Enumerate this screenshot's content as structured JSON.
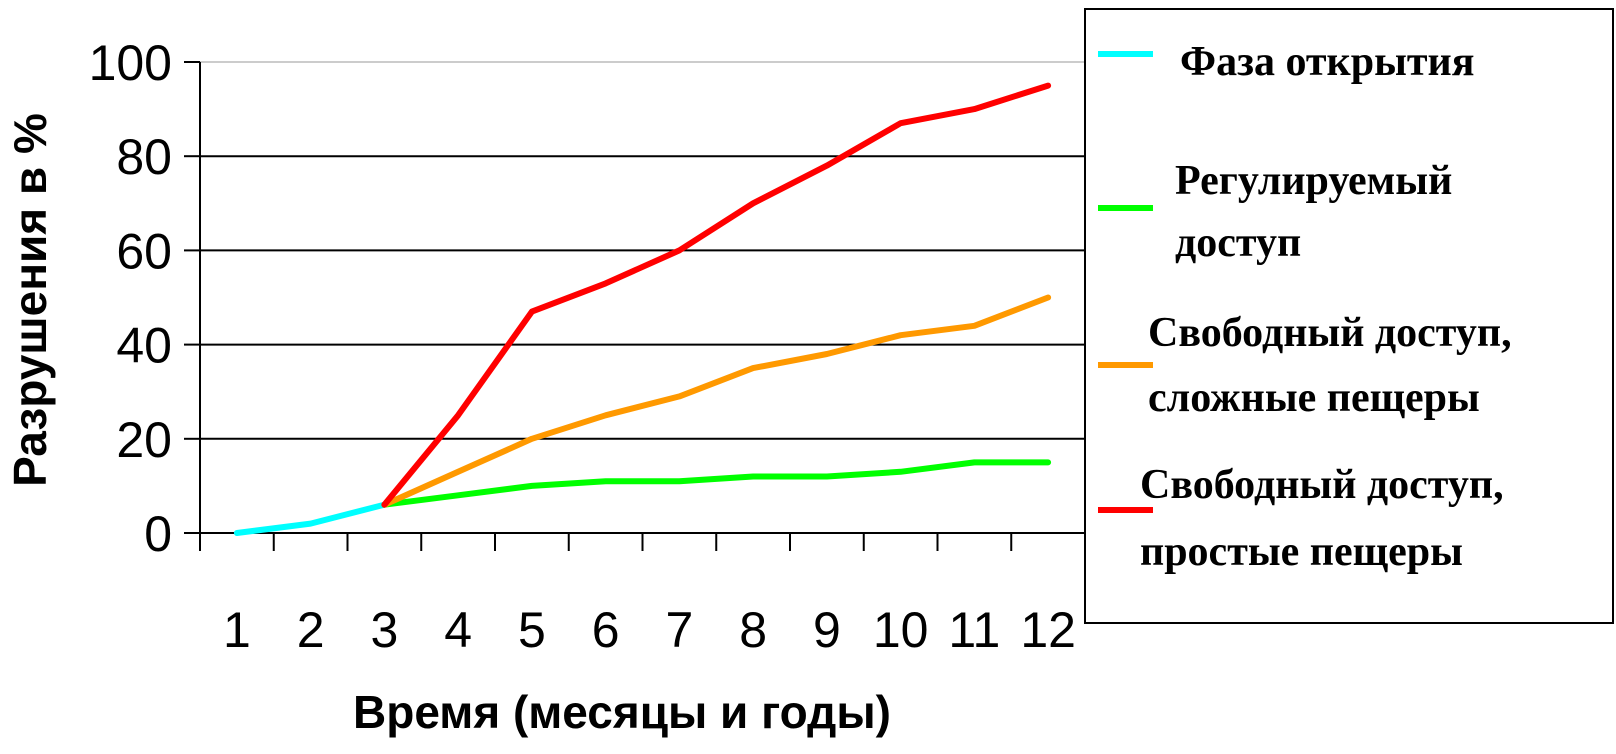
{
  "chart_data": {
    "type": "line",
    "title": "",
    "xlabel": "Время (месяцы и годы)",
    "ylabel": "Разрушения в %",
    "x": [
      "1",
      "2",
      "3",
      "4",
      "5",
      "6",
      "7",
      "8",
      "9",
      "10",
      "11",
      "12"
    ],
    "ylim": [
      0,
      100
    ],
    "yticks": [
      "0",
      "20",
      "40",
      "60",
      "80",
      "100"
    ],
    "grid": true,
    "legend_position": "right",
    "series": [
      {
        "name": "Фаза открытия",
        "label_lines": [
          "Фаза открытия"
        ],
        "color": "#00FFFF",
        "values": [
          0,
          2,
          6,
          null,
          null,
          null,
          null,
          null,
          null,
          null,
          null,
          null
        ]
      },
      {
        "name": "Регулируемый доступ",
        "label_lines": [
          "Регулируемый",
          "доступ"
        ],
        "color": "#00FF00",
        "values": [
          null,
          null,
          6,
          8,
          10,
          11,
          11,
          12,
          12,
          13,
          15,
          15
        ]
      },
      {
        "name": "Свободный доступ, сложные пещеры",
        "label_lines": [
          "Свободный доступ,",
          "сложные пещеры"
        ],
        "color": "#FF9900",
        "values": [
          null,
          null,
          6,
          13,
          20,
          25,
          29,
          35,
          38,
          42,
          44,
          50
        ]
      },
      {
        "name": "Свободный доступ, простые пещеры",
        "label_lines": [
          "Свободный доступ,",
          "простые пещеры"
        ],
        "color": "#FF0000",
        "values": [
          null,
          null,
          6,
          25,
          47,
          53,
          60,
          70,
          78,
          87,
          90,
          95
        ]
      }
    ]
  }
}
